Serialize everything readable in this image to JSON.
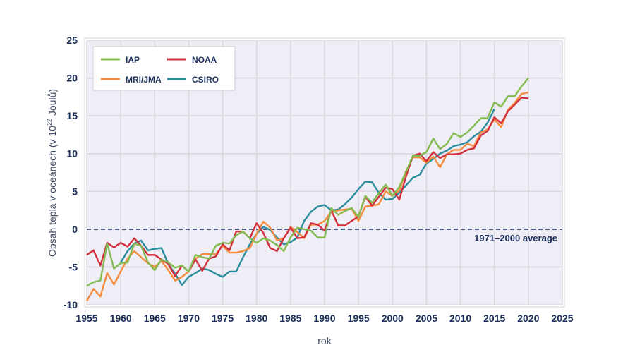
{
  "chart_data": {
    "type": "line",
    "title": "",
    "xlabel": "rok",
    "ylabel": "Obsah tepla v oceánech (v 10²² Joulů)",
    "ylabel_parts": {
      "main": "Obsah tepla v oceánech (v 10",
      "sup": "22",
      "tail": " Joulů)"
    },
    "xlim": [
      1955,
      2025
    ],
    "ylim": [
      -10,
      25
    ],
    "xticks": [
      1955,
      1960,
      1965,
      1970,
      1975,
      1980,
      1985,
      1990,
      1995,
      2000,
      2005,
      2010,
      2015,
      2020,
      2025
    ],
    "yticks": [
      -10,
      -5,
      0,
      5,
      10,
      15,
      20,
      25
    ],
    "grid": true,
    "legend_position": "top-left",
    "reference_line": {
      "value": 0,
      "label": "1971–2000 average",
      "color": "#1b2f5a",
      "style": "dashed"
    },
    "colors": {
      "plot_background": "#efedf5",
      "grid": "#d9d7dd",
      "text": "#1b2f5a"
    },
    "series": [
      {
        "name": "IAP",
        "color": "#82bb4f",
        "start_year": 1955,
        "values": [
          -7.5,
          -7.0,
          -6.8,
          -1.9,
          -5.2,
          -4.5,
          -4.4,
          -1.9,
          -2.2,
          -4.4,
          -5.4,
          -4.0,
          -4.4,
          -5.1,
          -4.8,
          -5.6,
          -3.4,
          -3.7,
          -3.9,
          -2.2,
          -1.8,
          -1.9,
          -0.8,
          -0.3,
          -1.2,
          -1.8,
          -1.2,
          -1.5,
          -2.1,
          -2.9,
          -1.1,
          0.2,
          0.0,
          -0.2,
          -1.1,
          -1.1,
          2.8,
          1.9,
          2.4,
          2.8,
          1.6,
          4.4,
          3.5,
          4.8,
          5.9,
          4.4,
          5.6,
          7.6,
          9.7,
          9.7,
          10.2,
          12.0,
          10.6,
          11.3,
          12.7,
          12.2,
          12.8,
          13.7,
          14.7,
          14.7,
          16.8,
          16.2,
          17.6,
          17.6,
          18.9,
          20.0
        ]
      },
      {
        "name": "NOAA",
        "color": "#d12f3c",
        "start_year": 1955,
        "values": [
          -3.4,
          -2.8,
          -4.8,
          -1.8,
          -2.4,
          -1.8,
          -2.3,
          -1.2,
          -2.2,
          -3.4,
          -3.4,
          -4.0,
          -4.6,
          -6.2,
          -4.8,
          -5.6,
          -4.0,
          -5.5,
          -3.9,
          -3.6,
          -2.0,
          -2.8,
          -0.3,
          -0.3,
          -1.2,
          0.8,
          -0.5,
          -2.5,
          -2.9,
          -1.2,
          0.2,
          -1.2,
          -1.1,
          0.8,
          0.6,
          -0.2,
          2.5,
          0.5,
          0.5,
          1.1,
          1.7,
          4.3,
          3.1,
          4.3,
          5.5,
          5.3,
          3.9,
          7.0,
          9.7,
          10.0,
          9.0,
          10.2,
          9.4,
          9.9,
          9.9,
          10.0,
          10.5,
          10.7,
          12.4,
          13.0,
          14.8,
          14.0,
          15.6,
          16.5,
          17.4,
          17.3
        ]
      },
      {
        "name": "MRI/JMA",
        "color": "#f58b3c",
        "start_year": 1955,
        "values": [
          -9.5,
          -7.9,
          -8.9,
          -5.8,
          -7.3,
          -5.6,
          -3.9,
          -2.9,
          -3.7,
          -4.5,
          -5.0,
          -4.2,
          -5.4,
          -6.8,
          -6.3,
          -5.6,
          -3.9,
          -3.3,
          -3.3,
          -3.3,
          -2.2,
          -3.1,
          -3.1,
          -2.9,
          -2.5,
          -0.6,
          1.0,
          0.2,
          -1.5,
          -1.2,
          0.3,
          -0.4,
          -1.2,
          0.6,
          0.6,
          1.1,
          2.3,
          2.5,
          2.6,
          2.7,
          1.1,
          3.0,
          3.1,
          3.3,
          5.0,
          4.4,
          5.1,
          7.7,
          9.5,
          9.5,
          8.8,
          9.6,
          8.2,
          9.9,
          10.5,
          10.5,
          11.3,
          11.0,
          12.8,
          13.2,
          14.5,
          13.5,
          15.8,
          16.7,
          17.9,
          18.1
        ]
      },
      {
        "name": "CSIRO",
        "color": "#2b8c9e",
        "start_year": 1960,
        "values": [
          -4.4,
          -2.9,
          -1.9,
          -1.5,
          -2.8,
          -2.6,
          -2.5,
          -4.6,
          -5.9,
          -7.4,
          -6.3,
          -5.8,
          -5.2,
          -5.4,
          -5.9,
          -6.3,
          -5.6,
          -5.6,
          -3.7,
          -2.0,
          -0.6,
          0.3,
          -0.1,
          -1.1,
          -2.0,
          -1.7,
          -1.1,
          1.1,
          2.3,
          3.0,
          3.2,
          2.5,
          2.6,
          3.3,
          4.2,
          5.3,
          6.3,
          6.2,
          4.8,
          3.9,
          4.0,
          4.8,
          5.8,
          6.8,
          7.2,
          8.7,
          9.3,
          10.0,
          10.4,
          11.0,
          11.2,
          11.5,
          12.3,
          12.9,
          14.1,
          15.9
        ]
      }
    ]
  }
}
